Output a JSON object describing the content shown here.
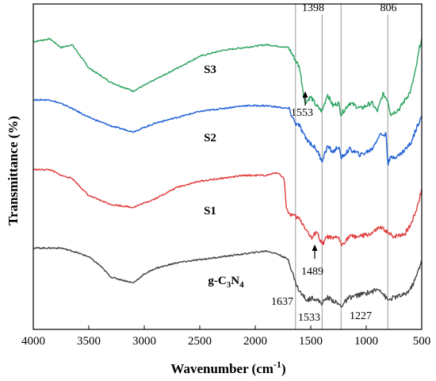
{
  "chart_data": {
    "type": "line",
    "xlabel_prefix": "Wavenumber (cm",
    "xlabel_sup": "-1",
    "xlabel_suffix": ")",
    "ylabel": "Transmittance (%)",
    "xlim": [
      4000,
      500
    ],
    "x_reversed": true,
    "y_ticks_shown": false,
    "grid": false,
    "x_ticks": [
      {
        "value": 4000,
        "label": "4000"
      },
      {
        "value": 3500,
        "label": "3500"
      },
      {
        "value": 3000,
        "label": "3000"
      },
      {
        "value": 2500,
        "label": "2500"
      },
      {
        "value": 2000,
        "label": "2000"
      },
      {
        "value": 1500,
        "label": "1500"
      },
      {
        "value": 1000,
        "label": "1000"
      },
      {
        "value": 500,
        "label": "500"
      }
    ],
    "vertical_reference_lines": [
      1637,
      1398,
      1227,
      806
    ],
    "series": [
      {
        "name": "S3",
        "color": "#2ca25f",
        "points": [
          [
            4000,
            87
          ],
          [
            3850,
            88
          ],
          [
            3750,
            85
          ],
          [
            3650,
            86
          ],
          [
            3500,
            78
          ],
          [
            3300,
            73
          ],
          [
            3100,
            70
          ],
          [
            2900,
            74
          ],
          [
            2700,
            78
          ],
          [
            2500,
            82
          ],
          [
            2300,
            84
          ],
          [
            2100,
            85
          ],
          [
            1900,
            86
          ],
          [
            1700,
            85
          ],
          [
            1600,
            78
          ],
          [
            1553,
            66
          ],
          [
            1500,
            68
          ],
          [
            1450,
            65
          ],
          [
            1398,
            63
          ],
          [
            1350,
            69
          ],
          [
            1300,
            65
          ],
          [
            1250,
            66
          ],
          [
            1227,
            62
          ],
          [
            1150,
            66
          ],
          [
            1050,
            64
          ],
          [
            950,
            66
          ],
          [
            900,
            63
          ],
          [
            850,
            69
          ],
          [
            806,
            67
          ],
          [
            780,
            62
          ],
          [
            700,
            64
          ],
          [
            600,
            70
          ],
          [
            550,
            78
          ],
          [
            520,
            85
          ],
          [
            500,
            88
          ]
        ]
      },
      {
        "name": "S2",
        "color": "#1f5fd6",
        "points": [
          [
            4000,
            67
          ],
          [
            3850,
            67
          ],
          [
            3700,
            65
          ],
          [
            3500,
            61
          ],
          [
            3300,
            58
          ],
          [
            3100,
            56
          ],
          [
            2900,
            59
          ],
          [
            2700,
            61
          ],
          [
            2500,
            63
          ],
          [
            2300,
            64
          ],
          [
            2100,
            65
          ],
          [
            1900,
            65
          ],
          [
            1700,
            64
          ],
          [
            1640,
            59
          ],
          [
            1600,
            58
          ],
          [
            1550,
            54
          ],
          [
            1500,
            52
          ],
          [
            1450,
            50
          ],
          [
            1398,
            46
          ],
          [
            1350,
            51
          ],
          [
            1300,
            49
          ],
          [
            1250,
            51
          ],
          [
            1227,
            47
          ],
          [
            1150,
            50
          ],
          [
            1050,
            48
          ],
          [
            950,
            50
          ],
          [
            880,
            55
          ],
          [
            820,
            55
          ],
          [
            806,
            45
          ],
          [
            780,
            47
          ],
          [
            700,
            48
          ],
          [
            600,
            52
          ],
          [
            550,
            57
          ],
          [
            500,
            62
          ]
        ]
      },
      {
        "name": "S1",
        "color": "#e03c3c",
        "points": [
          [
            4000,
            43
          ],
          [
            3850,
            43
          ],
          [
            3750,
            41
          ],
          [
            3650,
            40
          ],
          [
            3500,
            34
          ],
          [
            3300,
            31
          ],
          [
            3100,
            30
          ],
          [
            2900,
            33
          ],
          [
            2700,
            37
          ],
          [
            2500,
            39
          ],
          [
            2300,
            40
          ],
          [
            2100,
            41
          ],
          [
            1900,
            41
          ],
          [
            1800,
            42
          ],
          [
            1740,
            40
          ],
          [
            1720,
            30
          ],
          [
            1700,
            28
          ],
          [
            1650,
            27
          ],
          [
            1600,
            26
          ],
          [
            1550,
            23
          ],
          [
            1489,
            19
          ],
          [
            1450,
            22
          ],
          [
            1398,
            17
          ],
          [
            1350,
            20
          ],
          [
            1300,
            19
          ],
          [
            1250,
            20
          ],
          [
            1227,
            17
          ],
          [
            1150,
            20
          ],
          [
            1050,
            20
          ],
          [
            950,
            21
          ],
          [
            880,
            23
          ],
          [
            820,
            22
          ],
          [
            806,
            21
          ],
          [
            750,
            20
          ],
          [
            650,
            21
          ],
          [
            600,
            24
          ],
          [
            550,
            29
          ],
          [
            500,
            36
          ]
        ]
      },
      {
        "name": "g-C3N4",
        "color": "#444444",
        "points": [
          [
            4000,
            16
          ],
          [
            3850,
            16
          ],
          [
            3750,
            16
          ],
          [
            3650,
            15
          ],
          [
            3500,
            13
          ],
          [
            3400,
            10
          ],
          [
            3300,
            6
          ],
          [
            3200,
            5
          ],
          [
            3100,
            4
          ],
          [
            3000,
            7
          ],
          [
            2900,
            9
          ],
          [
            2700,
            11
          ],
          [
            2500,
            12
          ],
          [
            2300,
            13
          ],
          [
            2100,
            14
          ],
          [
            1900,
            15
          ],
          [
            1800,
            14
          ],
          [
            1700,
            12
          ],
          [
            1637,
            4
          ],
          [
            1600,
            1
          ],
          [
            1533,
            -2
          ],
          [
            1480,
            -1
          ],
          [
            1398,
            -3
          ],
          [
            1350,
            -1
          ],
          [
            1300,
            -2
          ],
          [
            1227,
            -4
          ],
          [
            1150,
            -1
          ],
          [
            1050,
            0
          ],
          [
            950,
            1
          ],
          [
            880,
            2
          ],
          [
            806,
            -2
          ],
          [
            750,
            -1
          ],
          [
            650,
            0
          ],
          [
            600,
            2
          ],
          [
            550,
            6
          ],
          [
            500,
            12
          ]
        ]
      }
    ],
    "series_labels": [
      {
        "series": "S3",
        "text": "S3"
      },
      {
        "series": "S2",
        "text": "S2"
      },
      {
        "series": "S1",
        "text": "S1"
      },
      {
        "series": "g-C3N4",
        "base": "g-C",
        "sub1": "3",
        "mid": "N",
        "sub2": "4"
      }
    ],
    "annotations": [
      {
        "text": "1398",
        "wavenumber": 1398,
        "kind": "top"
      },
      {
        "text": "806",
        "wavenumber": 806,
        "kind": "top"
      },
      {
        "text": "1553",
        "wavenumber": 1553,
        "kind": "arrow-below",
        "series": "S3"
      },
      {
        "text": "1489",
        "wavenumber": 1489,
        "kind": "arrow-below",
        "series": "S1"
      },
      {
        "text": "1637",
        "wavenumber": 1637,
        "kind": "label-left",
        "series": "g-C3N4"
      },
      {
        "text": "1533",
        "wavenumber": 1533,
        "kind": "label-below",
        "series": "g-C3N4"
      },
      {
        "text": "1227",
        "wavenumber": 1227,
        "kind": "label-below",
        "series": "g-C3N4"
      }
    ]
  }
}
